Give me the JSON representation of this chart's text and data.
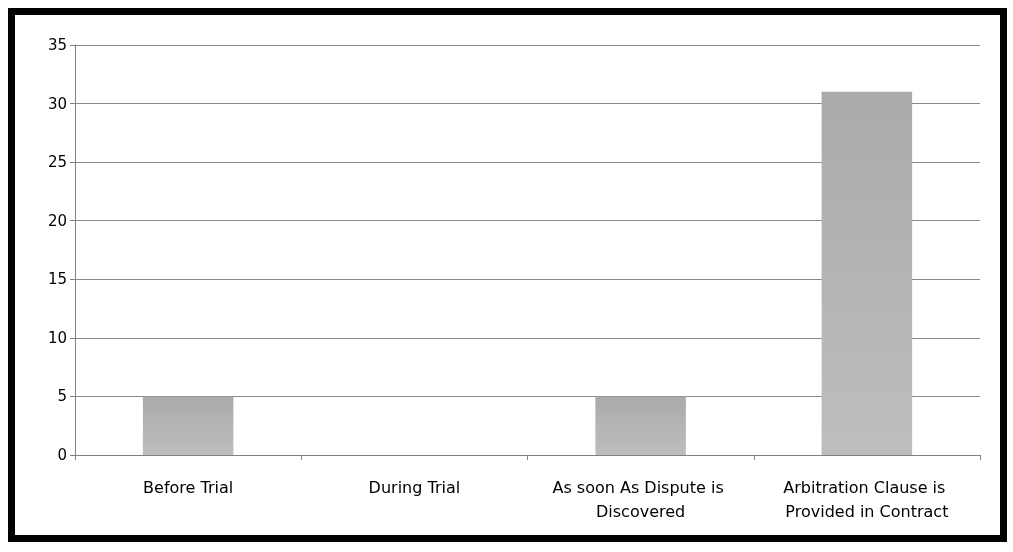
{
  "chart_data": {
    "type": "bar",
    "categories": [
      "Before Trial",
      "During Trial",
      "As soon As Dispute is Discovered",
      "Arbitration Clause is Provided in Contract"
    ],
    "values": [
      5,
      0,
      5,
      31
    ],
    "color": "#a6a6a6",
    "ylim": [
      0,
      35
    ],
    "yticks": [
      0,
      5,
      10,
      15,
      20,
      25,
      30,
      35
    ],
    "grid": "y"
  }
}
